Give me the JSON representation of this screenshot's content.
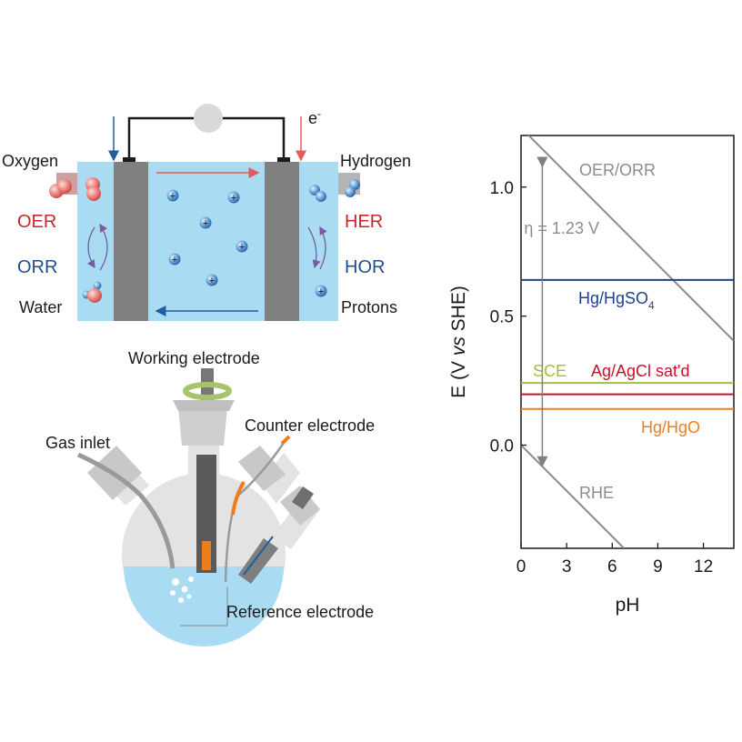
{
  "fuel_cell": {
    "electron_label": "e",
    "electron_sup": "-",
    "left": {
      "gas": "Oxygen",
      "reaction_top": "OER",
      "reaction_bottom": "ORR",
      "product": "Water"
    },
    "right": {
      "gas": "Hydrogen",
      "reaction_top": "HER",
      "reaction_bottom": "HOR",
      "product": "Protons"
    },
    "proton_symbol": "+"
  },
  "setup": {
    "working": "Working electrode",
    "counter": "Counter electrode",
    "gas_inlet": "Gas inlet",
    "reference": "Reference electrode"
  },
  "colors": {
    "oer_red": "#c9262c",
    "orr_blue": "#1f4e8c",
    "electrolyte": "#a9dcf3",
    "electrode_gray": "#808080",
    "line_gray": "#8c8c8c",
    "hgso4": "#1f3f8f",
    "sce": "#9fbf3b",
    "agcl": "#c8102e",
    "hgo": "#ee7d1a"
  },
  "chart_data": {
    "type": "line",
    "xlabel": "pH",
    "ylabel_parts": [
      "E (V ",
      "vs",
      " SHE)"
    ],
    "xlim": [
      0,
      14
    ],
    "ylim": [
      -0.4,
      1.2
    ],
    "xticks": [
      "0",
      "3",
      "6",
      "9",
      "12"
    ],
    "yticks": [
      "1.0",
      "0.5",
      "0.0"
    ],
    "xtick_values": [
      0,
      3,
      6,
      9,
      12
    ],
    "ytick_values": [
      1.0,
      0.5,
      0.0
    ],
    "series": [
      {
        "name": "OER/ORR",
        "x": [
          0,
          14
        ],
        "y": [
          1.23,
          0.404
        ],
        "color": "#8c8c8c"
      },
      {
        "name": "RHE",
        "x": [
          0,
          6.78
        ],
        "y": [
          0.0,
          -0.4
        ],
        "color": "#8c8c8c"
      },
      {
        "name_main": "Hg/HgSO",
        "name_sub": "4",
        "x": [
          0,
          14
        ],
        "y": [
          0.64,
          0.64
        ],
        "color": "#1f3f8f"
      },
      {
        "name": "SCE",
        "x": [
          0,
          14
        ],
        "y": [
          0.241,
          0.241
        ],
        "color": "#9fbf3b"
      },
      {
        "name": "Ag/AgCl sat'd",
        "x": [
          0,
          14
        ],
        "y": [
          0.197,
          0.197
        ],
        "color": "#c8102e"
      },
      {
        "name": "Hg/HgO",
        "x": [
          0,
          14
        ],
        "y": [
          0.14,
          0.14
        ],
        "color": "#ee7d1a"
      }
    ],
    "annotation": "η = 1.23 V",
    "annotation_x": 1.4
  }
}
